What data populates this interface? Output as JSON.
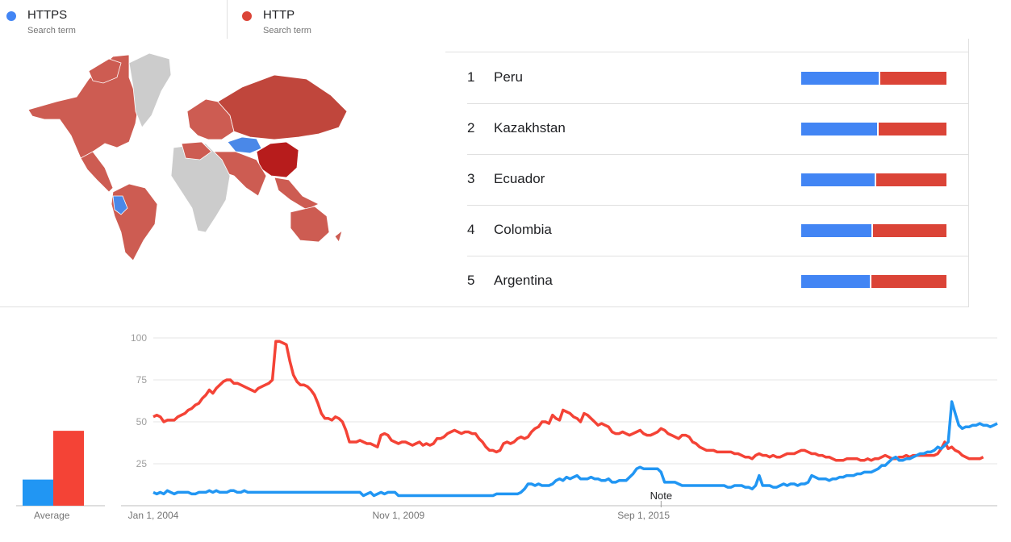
{
  "legend": [
    {
      "label": "HTTPS",
      "sub": "Search term",
      "color": "#4285f4"
    },
    {
      "label": "HTTP",
      "sub": "Search term",
      "color": "#db4437"
    }
  ],
  "rankings": [
    {
      "rank": "1",
      "name": "Peru",
      "https_pct": 54
    },
    {
      "rank": "2",
      "name": "Kazakhstan",
      "https_pct": 53
    },
    {
      "rank": "3",
      "name": "Ecuador",
      "https_pct": 51
    },
    {
      "rank": "4",
      "name": "Colombia",
      "https_pct": 49
    },
    {
      "rank": "5",
      "name": "Argentina",
      "https_pct": 48
    }
  ],
  "average": {
    "label": "Average",
    "https": 15,
    "http": 43
  },
  "chart_data": {
    "type": "line",
    "title": "",
    "xlabel": "",
    "ylabel": "",
    "ylim": [
      0,
      100
    ],
    "yticks": [
      25,
      50,
      75,
      100
    ],
    "xticks": [
      "Jan 1, 2004",
      "Nov 1, 2009",
      "Sep 1, 2015"
    ],
    "xtick_index": [
      0,
      70,
      140
    ],
    "annotation": {
      "label": "Note",
      "index": 145
    },
    "series": [
      {
        "name": "HTTPS",
        "color": "#2196f3",
        "values": [
          8,
          7,
          8,
          7,
          9,
          8,
          7,
          8,
          8,
          8,
          8,
          7,
          7,
          8,
          8,
          8,
          9,
          8,
          9,
          8,
          8,
          8,
          9,
          9,
          8,
          8,
          9,
          8,
          8,
          8,
          8,
          8,
          8,
          8,
          8,
          8,
          8,
          8,
          8,
          8,
          8,
          8,
          8,
          8,
          8,
          8,
          8,
          8,
          8,
          8,
          8,
          8,
          8,
          8,
          8,
          8,
          8,
          8,
          8,
          8,
          6,
          7,
          8,
          6,
          7,
          8,
          7,
          8,
          8,
          8,
          6,
          6,
          6,
          6,
          6,
          6,
          6,
          6,
          6,
          6,
          6,
          6,
          6,
          6,
          6,
          6,
          6,
          6,
          6,
          6,
          6,
          6,
          6,
          6,
          6,
          6,
          6,
          6,
          7,
          7,
          7,
          7,
          7,
          7,
          7,
          8,
          10,
          13,
          13,
          12,
          13,
          12,
          12,
          12,
          13,
          15,
          16,
          15,
          17,
          16,
          17,
          18,
          16,
          16,
          16,
          17,
          16,
          16,
          15,
          15,
          16,
          14,
          14,
          15,
          15,
          15,
          17,
          19,
          22,
          23,
          22,
          22,
          22,
          22,
          22,
          20,
          14,
          14,
          14,
          14,
          13,
          12,
          12,
          12,
          12,
          12,
          12,
          12,
          12,
          12,
          12,
          12,
          12,
          12,
          11,
          11,
          12,
          12,
          12,
          11,
          11,
          10,
          12,
          18,
          12,
          12,
          12,
          11,
          11,
          12,
          13,
          12,
          13,
          13,
          12,
          13,
          13,
          14,
          18,
          17,
          16,
          16,
          16,
          15,
          16,
          16,
          17,
          17,
          18,
          18,
          18,
          19,
          19,
          20,
          20,
          20,
          21,
          22,
          24,
          24,
          26,
          28,
          29,
          27,
          27,
          28,
          28,
          29,
          30,
          31,
          31,
          32,
          32,
          33,
          35,
          34,
          36,
          38,
          62,
          55,
          48,
          46,
          47,
          47,
          48,
          48,
          49,
          48,
          48,
          47,
          48,
          49
        ]
      },
      {
        "name": "HTTP",
        "color": "#f44336",
        "values": [
          53,
          54,
          53,
          50,
          51,
          51,
          51,
          53,
          54,
          55,
          57,
          58,
          60,
          61,
          64,
          66,
          69,
          67,
          70,
          72,
          74,
          75,
          75,
          73,
          73,
          72,
          71,
          70,
          69,
          68,
          70,
          71,
          72,
          73,
          75,
          98,
          98,
          97,
          96,
          86,
          78,
          74,
          72,
          72,
          71,
          69,
          66,
          61,
          55,
          52,
          52,
          51,
          53,
          52,
          50,
          45,
          38,
          38,
          38,
          39,
          38,
          37,
          37,
          36,
          35,
          42,
          43,
          42,
          39,
          38,
          37,
          38,
          38,
          37,
          36,
          37,
          38,
          36,
          37,
          36,
          37,
          40,
          40,
          41,
          43,
          44,
          45,
          44,
          43,
          44,
          44,
          43,
          43,
          40,
          38,
          35,
          33,
          33,
          32,
          33,
          37,
          38,
          37,
          38,
          40,
          41,
          40,
          41,
          44,
          46,
          47,
          50,
          50,
          49,
          54,
          52,
          51,
          57,
          56,
          55,
          53,
          52,
          50,
          55,
          54,
          52,
          50,
          48,
          49,
          48,
          47,
          44,
          43,
          43,
          44,
          43,
          42,
          43,
          44,
          45,
          43,
          42,
          42,
          43,
          44,
          46,
          45,
          43,
          42,
          41,
          40,
          42,
          42,
          41,
          38,
          37,
          35,
          34,
          33,
          33,
          33,
          32,
          32,
          32,
          32,
          32,
          31,
          31,
          30,
          29,
          29,
          28,
          30,
          31,
          30,
          30,
          29,
          30,
          29,
          29,
          30,
          31,
          31,
          31,
          32,
          33,
          33,
          32,
          31,
          31,
          30,
          30,
          29,
          29,
          28,
          27,
          27,
          27,
          28,
          28,
          28,
          28,
          27,
          27,
          28,
          27,
          28,
          28,
          29,
          30,
          29,
          28,
          28,
          29,
          29,
          30,
          29,
          30,
          30,
          30,
          30,
          30,
          30,
          30,
          31,
          34,
          38,
          34,
          35,
          33,
          32,
          30,
          29,
          28,
          28,
          28,
          28,
          29
        ]
      }
    ]
  }
}
